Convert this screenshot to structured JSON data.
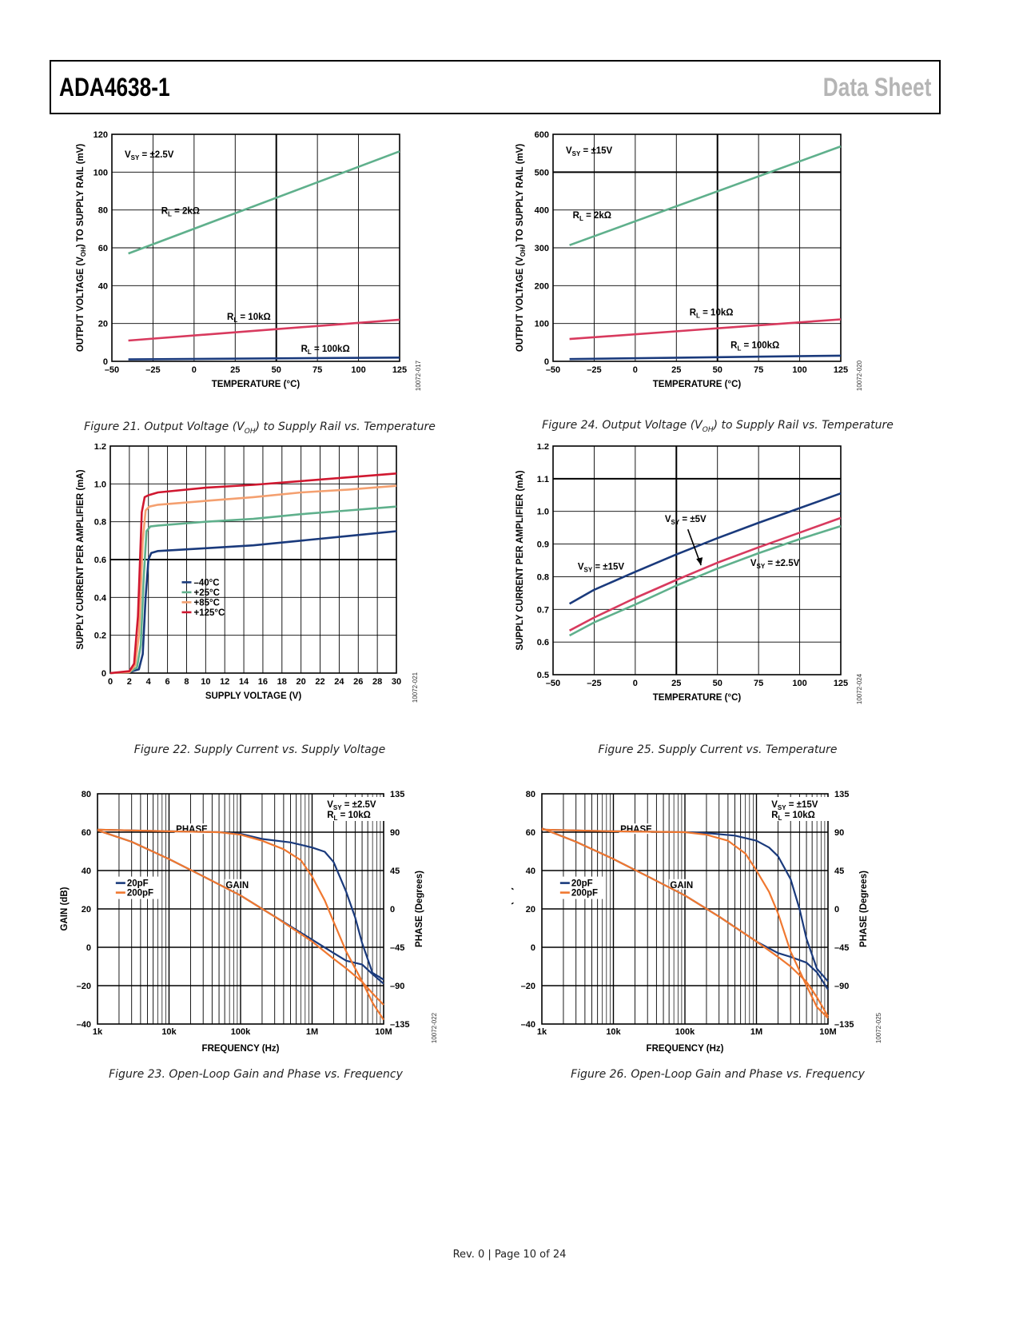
{
  "header": {
    "part_number": "ADA4638-1",
    "doc_type": "Data Sheet"
  },
  "footer": {
    "text": "Rev. 0 | Page 10 of 24"
  },
  "colors": {
    "blue": "#1a3a7c",
    "green": "#5fb08c",
    "pink": "#d83a5e",
    "red": "#d01830",
    "orange": "#f4a070",
    "orange_gain": "#f07830"
  },
  "figures": {
    "fig21": {
      "caption_prefix": "Figure 21. Output Voltage (V",
      "caption_sub": "OH",
      "caption_suffix": ") to Supply Rail vs. Temperature",
      "code": "10072-017"
    },
    "fig24": {
      "caption_prefix": "Figure 24. Output Voltage (V",
      "caption_sub": "OH",
      "caption_suffix": ") to Supply Rail vs. Temperature",
      "code": "10072-020"
    },
    "fig22": {
      "caption": "Figure 22. Supply Current vs. Supply Voltage",
      "code": "10072-021"
    },
    "fig25": {
      "caption": "Figure 25. Supply Current vs. Temperature",
      "code": "10072-024"
    },
    "fig23": {
      "caption": "Figure 23. Open-Loop Gain and Phase vs. Frequency",
      "code": "10072-022"
    },
    "fig26": {
      "caption": "Figure 26. Open-Loop Gain and Phase vs. Frequency",
      "code": "10072-025"
    }
  },
  "chart_data": [
    {
      "id": "fig21",
      "type": "line",
      "title": "Output Voltage (VOH) to Supply Rail vs. Temperature",
      "xlabel": "TEMPERATURE (°C)",
      "ylabel_prefix": "OUTPUT VOLTAGE (V",
      "ylabel_sub": "OH",
      "ylabel_suffix": ") TO SUPPLY RAIL (mV)",
      "xlim": [
        -50,
        125
      ],
      "ylim": [
        0,
        120
      ],
      "xticks": [
        -50,
        -25,
        0,
        25,
        50,
        75,
        100,
        125
      ],
      "yticks": [
        0,
        20,
        40,
        60,
        80,
        100,
        120
      ],
      "xtick_labels": [
        "–50",
        "–25",
        "0",
        "25",
        "50",
        "75",
        "100",
        "125"
      ],
      "ytick_labels": [
        "0",
        "20",
        "40",
        "60",
        "80",
        "100",
        "120"
      ],
      "condition": {
        "main": "V",
        "sub": "SY",
        "rest": " = ±2.5V"
      },
      "series": [
        {
          "name": "RL = 2kΩ",
          "label_main": "R",
          "label_sub": "L",
          "label_rest": " = 2kΩ",
          "color": "green",
          "x": [
            -40,
            125
          ],
          "y": [
            57,
            111
          ]
        },
        {
          "name": "RL = 10kΩ",
          "label_main": "R",
          "label_sub": "L",
          "label_rest": " = 10kΩ",
          "color": "pink",
          "x": [
            -40,
            125
          ],
          "y": [
            11,
            22
          ]
        },
        {
          "name": "RL = 100kΩ",
          "label_main": "R",
          "label_sub": "L",
          "label_rest": " = 100kΩ",
          "color": "blue",
          "x": [
            -40,
            125
          ],
          "y": [
            1,
            2
          ]
        }
      ]
    },
    {
      "id": "fig24",
      "type": "line",
      "title": "Output Voltage (VOH) to Supply Rail vs. Temperature",
      "xlabel": "TEMPERATURE (°C)",
      "ylabel_prefix": "OUTPUT VOLTAGE (V",
      "ylabel_sub": "OH",
      "ylabel_suffix": ") TO SUPPLY RAIL (mV)",
      "xlim": [
        -50,
        125
      ],
      "ylim": [
        0,
        600
      ],
      "xticks": [
        -50,
        -25,
        0,
        25,
        50,
        75,
        100,
        125
      ],
      "yticks": [
        0,
        100,
        200,
        300,
        400,
        500,
        600
      ],
      "xtick_labels": [
        "–50",
        "–25",
        "0",
        "25",
        "50",
        "75",
        "100",
        "125"
      ],
      "ytick_labels": [
        "0",
        "100",
        "200",
        "300",
        "400",
        "500",
        "600"
      ],
      "condition": {
        "main": "V",
        "sub": "SY",
        "rest": " = ±15V"
      },
      "series": [
        {
          "name": "RL = 2kΩ",
          "label_main": "R",
          "label_sub": "L",
          "label_rest": " = 2kΩ",
          "color": "green",
          "x": [
            -40,
            125
          ],
          "y": [
            307,
            568
          ]
        },
        {
          "name": "RL = 10kΩ",
          "label_main": "R",
          "label_sub": "L",
          "label_rest": " = 10kΩ",
          "color": "pink",
          "x": [
            -40,
            125
          ],
          "y": [
            59,
            111
          ]
        },
        {
          "name": "RL = 100kΩ",
          "label_main": "R",
          "label_sub": "L",
          "label_rest": " = 100kΩ",
          "color": "blue",
          "x": [
            -40,
            125
          ],
          "y": [
            6,
            15
          ]
        }
      ]
    },
    {
      "id": "fig22",
      "type": "line",
      "title": "Supply Current vs. Supply Voltage",
      "xlabel": "SUPPLY VOLTAGE (V)",
      "ylabel": "SUPPLY CURRENT PER AMPLIFIER (mA)",
      "xlim": [
        0,
        30
      ],
      "ylim": [
        0,
        1.2
      ],
      "xticks": [
        0,
        2,
        4,
        6,
        8,
        10,
        12,
        14,
        16,
        18,
        20,
        22,
        24,
        26,
        28,
        30
      ],
      "yticks": [
        0,
        0.2,
        0.4,
        0.6,
        0.8,
        1.0,
        1.2
      ],
      "xtick_labels": [
        "0",
        "2",
        "4",
        "6",
        "8",
        "10",
        "12",
        "14",
        "16",
        "18",
        "20",
        "22",
        "24",
        "26",
        "28",
        "30"
      ],
      "ytick_labels": [
        "0",
        "0.2",
        "0.4",
        "0.6",
        "0.8",
        "1.0",
        "1.2"
      ],
      "legend": [
        "–40°C",
        "+25°C",
        "+85°C",
        "+125°C"
      ],
      "series": [
        {
          "name": "–40°C",
          "color": "blue",
          "x": [
            0,
            2,
            3,
            3.4,
            3.7,
            4.0,
            4.3,
            5,
            10,
            15,
            20,
            25,
            30
          ],
          "y": [
            0,
            0.005,
            0.02,
            0.1,
            0.4,
            0.6,
            0.635,
            0.645,
            0.66,
            0.675,
            0.7,
            0.725,
            0.75
          ]
        },
        {
          "name": "+25°C",
          "color": "green",
          "x": [
            0,
            2,
            2.8,
            3.2,
            3.5,
            3.8,
            4.2,
            5,
            10,
            15,
            20,
            25,
            30
          ],
          "y": [
            0,
            0.005,
            0.03,
            0.15,
            0.5,
            0.75,
            0.775,
            0.78,
            0.8,
            0.815,
            0.84,
            0.86,
            0.88
          ]
        },
        {
          "name": "+85°C",
          "color": "orange",
          "x": [
            0,
            2,
            2.6,
            3.0,
            3.4,
            3.7,
            4.1,
            5,
            10,
            15,
            20,
            25,
            30
          ],
          "y": [
            0,
            0.005,
            0.04,
            0.2,
            0.7,
            0.86,
            0.88,
            0.89,
            0.91,
            0.93,
            0.955,
            0.97,
            0.99
          ]
        },
        {
          "name": "+125°C",
          "color": "red",
          "x": [
            0,
            2,
            2.5,
            2.9,
            3.3,
            3.6,
            4.0,
            5,
            10,
            15,
            20,
            25,
            30
          ],
          "y": [
            0,
            0.01,
            0.05,
            0.3,
            0.85,
            0.93,
            0.94,
            0.955,
            0.98,
            0.995,
            1.015,
            1.035,
            1.055
          ]
        }
      ]
    },
    {
      "id": "fig25",
      "type": "line",
      "title": "Supply Current vs. Temperature",
      "xlabel": "TEMPERATURE (°C)",
      "ylabel": "SUPPLY CURRENT PER AMPLIFIER (mA)",
      "xlim": [
        -50,
        125
      ],
      "ylim": [
        0.5,
        1.2
      ],
      "xticks": [
        -50,
        -25,
        0,
        25,
        50,
        75,
        100,
        125
      ],
      "yticks": [
        0.5,
        0.6,
        0.7,
        0.8,
        0.9,
        1.0,
        1.1,
        1.2
      ],
      "xtick_labels": [
        "–50",
        "–25",
        "0",
        "25",
        "50",
        "75",
        "100",
        "125"
      ],
      "ytick_labels": [
        "0.5",
        "0.6",
        "0.7",
        "0.8",
        "0.9",
        "1.0",
        "1.1",
        "1.2"
      ],
      "series": [
        {
          "name": "VSY = ±15V",
          "label_main": "V",
          "label_sub": "SY",
          "label_rest": " = ±15V",
          "color": "blue",
          "x": [
            -40,
            -25,
            0,
            25,
            50,
            75,
            100,
            125
          ],
          "y": [
            0.717,
            0.76,
            0.815,
            0.868,
            0.918,
            0.965,
            1.01,
            1.055
          ]
        },
        {
          "name": "VSY = ±5V",
          "label_main": "V",
          "label_sub": "SY",
          "label_rest": " = ±5V",
          "color": "pink",
          "x": [
            -40,
            -25,
            0,
            25,
            50,
            75,
            100,
            125
          ],
          "y": [
            0.635,
            0.675,
            0.735,
            0.79,
            0.843,
            0.89,
            0.935,
            0.98
          ]
        },
        {
          "name": "VSY = ±2.5V",
          "label_main": "V",
          "label_sub": "SY",
          "label_rest": " = ±2.5V",
          "color": "green",
          "x": [
            -40,
            -25,
            0,
            25,
            50,
            75,
            100,
            125
          ],
          "y": [
            0.62,
            0.66,
            0.715,
            0.773,
            0.825,
            0.872,
            0.915,
            0.955
          ]
        }
      ]
    },
    {
      "id": "fig23",
      "type": "line",
      "title": "Open-Loop Gain and Phase vs. Frequency",
      "xlabel": "FREQUENCY (Hz)",
      "ylabel": "GAIN (dB)",
      "y2label": "PHASE (Degrees)",
      "xscale": "log",
      "xlim": [
        1000,
        10000000
      ],
      "ylim": [
        -40,
        80
      ],
      "y2lim": [
        -135,
        135
      ],
      "xtick_labels": [
        "1k",
        "10k",
        "100k",
        "1M",
        "10M"
      ],
      "ytick_labels": [
        "–40",
        "–20",
        "0",
        "20",
        "40",
        "60",
        "80"
      ],
      "y2tick_labels": [
        "–135",
        "–90",
        "–45",
        "0",
        "45",
        "90",
        "135"
      ],
      "condition": {
        "main": "V",
        "sub": "SY",
        "rest": " = ±2.5V",
        "main2": "R",
        "sub2": "L",
        "rest2": " = 10kΩ"
      },
      "phase_label": "PHASE",
      "gain_label": "GAIN",
      "legend": [
        "20pF",
        "200pF"
      ],
      "series": [
        {
          "name": "20pF gain",
          "color": "blue",
          "x": [
            1000,
            3000,
            10000,
            30000,
            100000,
            300000,
            1000000,
            2000000,
            3000000,
            5000000,
            7000000,
            10000000
          ],
          "y": [
            61,
            55,
            46,
            37,
            27,
            16,
            4,
            -3,
            -7,
            -9,
            -14,
            -19
          ]
        },
        {
          "name": "200pF gain",
          "color": "orange_gain",
          "x": [
            1000,
            3000,
            10000,
            30000,
            100000,
            300000,
            1000000,
            2000000,
            3000000,
            5000000,
            7000000,
            10000000
          ],
          "y": [
            61,
            55,
            46,
            37,
            27,
            16,
            3,
            -6,
            -11,
            -18,
            -24,
            -30
          ]
        },
        {
          "name": "20pF phase",
          "color": "blue",
          "x": [
            1000,
            10000,
            50000,
            100000,
            200000,
            500000,
            1000000,
            1500000,
            2000000,
            3000000,
            4000000,
            5000000,
            7000000,
            10000000
          ],
          "y": [
            93,
            91,
            90,
            88,
            82,
            78,
            72,
            67,
            55,
            20,
            -10,
            -40,
            -75,
            -83
          ]
        },
        {
          "name": "200pF phase",
          "color": "orange_gain",
          "x": [
            1000,
            10000,
            50000,
            100000,
            200000,
            400000,
            700000,
            1000000,
            1500000,
            2000000,
            3000000,
            5000000,
            7000000,
            10000000
          ],
          "y": [
            93,
            91,
            90,
            87,
            80,
            70,
            57,
            38,
            10,
            -15,
            -50,
            -85,
            -110,
            -130
          ]
        }
      ]
    },
    {
      "id": "fig26",
      "type": "line",
      "title": "Open-Loop Gain and Phase vs. Frequency",
      "xlabel": "FREQUENCY (Hz)",
      "ylabel": "GAIN (dB)",
      "y2label": "PHASE (Degrees)",
      "xscale": "log",
      "xlim": [
        1000,
        10000000
      ],
      "ylim": [
        -40,
        80
      ],
      "y2lim": [
        -135,
        135
      ],
      "xtick_labels": [
        "1k",
        "10k",
        "100k",
        "1M",
        "10M"
      ],
      "ytick_labels": [
        "–40",
        "–20",
        "0",
        "20",
        "40",
        "60",
        "80"
      ],
      "y2tick_labels": [
        "–135",
        "–90",
        "–45",
        "0",
        "45",
        "90",
        "135"
      ],
      "condition": {
        "main": "V",
        "sub": "SY",
        "rest": " = ±15V",
        "main2": "R",
        "sub2": "L",
        "rest2": " = 10kΩ"
      },
      "phase_label": "PHASE",
      "gain_label": "GAIN",
      "legend": [
        "20pF",
        "200pF"
      ],
      "series": [
        {
          "name": "20pF gain",
          "color": "blue",
          "x": [
            1000,
            3000,
            10000,
            30000,
            100000,
            300000,
            1000000,
            2000000,
            3000000,
            5000000,
            7000000,
            10000000
          ],
          "y": [
            62,
            55,
            46,
            37,
            27,
            16,
            3,
            -3,
            -5,
            -8,
            -13,
            -22
          ]
        },
        {
          "name": "200pF gain",
          "color": "orange_gain",
          "x": [
            1000,
            3000,
            10000,
            30000,
            100000,
            300000,
            1000000,
            2000000,
            3000000,
            5000000,
            7000000,
            10000000
          ],
          "y": [
            62,
            55,
            46,
            37,
            27,
            16,
            3,
            -5,
            -10,
            -18,
            -26,
            -36
          ]
        },
        {
          "name": "20pF phase",
          "color": "blue",
          "x": [
            1000,
            10000,
            100000,
            200000,
            500000,
            1000000,
            1500000,
            2000000,
            3000000,
            4000000,
            5000000,
            7000000,
            10000000
          ],
          "y": [
            93,
            91,
            90,
            89,
            86,
            80,
            72,
            62,
            35,
            0,
            -35,
            -70,
            -85
          ]
        },
        {
          "name": "200pF phase",
          "color": "orange_gain",
          "x": [
            1000,
            10000,
            100000,
            200000,
            400000,
            700000,
            1000000,
            1500000,
            2000000,
            3000000,
            5000000,
            7000000,
            10000000
          ],
          "y": [
            93,
            91,
            90,
            87,
            80,
            65,
            45,
            20,
            -5,
            -50,
            -90,
            -115,
            -128
          ]
        }
      ]
    }
  ]
}
